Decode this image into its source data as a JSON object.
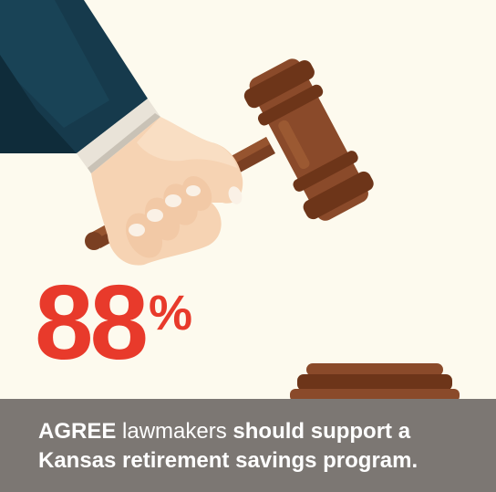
{
  "stat": {
    "number": "88",
    "percent": "%"
  },
  "caption": {
    "word1": "AGREE",
    "word2": "lawmakers",
    "line1_rest": "should support a",
    "line2": "Kansas retirement savings program."
  },
  "colors": {
    "background": "#fdfaee",
    "accent_red": "#e83a2b",
    "banner_gray": "#7c7773",
    "sleeve_navy": "#14384a",
    "gavel_brown": "#8a4a2a",
    "skin": "#f6d3b3"
  },
  "illustration": {
    "subject": "hand-holding-gavel",
    "block": "sound-block"
  }
}
